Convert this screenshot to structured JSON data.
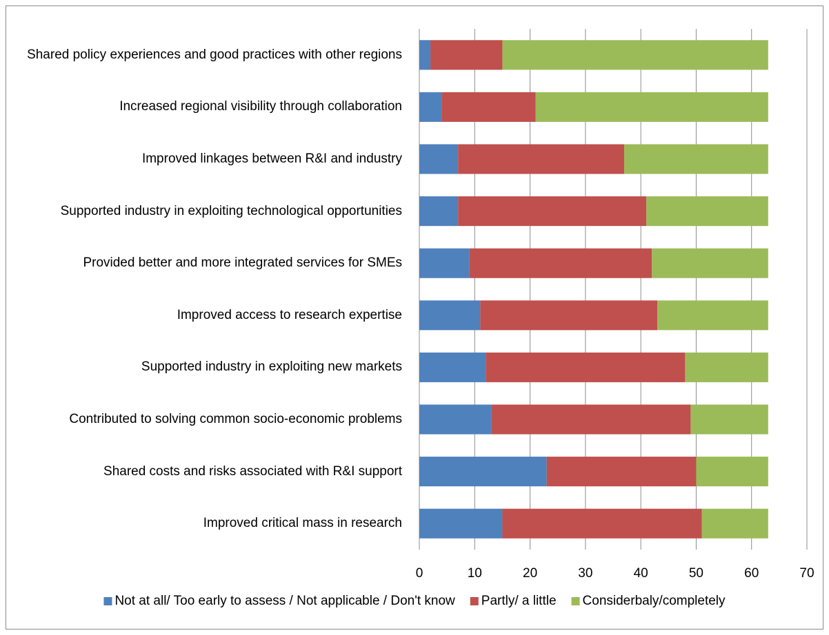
{
  "chart_data": {
    "type": "stacked_bar_horizontal",
    "categories": [
      "Shared policy experiences and good practices with other regions",
      "Increased regional visibility through collaboration",
      "Improved linkages between R&I and industry",
      "Supported industry in exploiting technological opportunities",
      "Provided better and more integrated services for SMEs",
      "Improved access to research expertise",
      "Supported industry in exploiting new markets",
      "Contributed to solving common socio-economic problems",
      "Shared costs  and risks associated with R&I support",
      "Improved critical mass in research"
    ],
    "series": [
      {
        "name": "Not at all/ Too early to assess / Not applicable /  Don't know",
        "color": "#4f81bd",
        "values": [
          2,
          4,
          7,
          7,
          9,
          11,
          12,
          13,
          23,
          15
        ]
      },
      {
        "name": "Partly/ a little",
        "color": "#c0504d",
        "values": [
          13,
          17,
          30,
          34,
          33,
          32,
          36,
          36,
          27,
          36
        ]
      },
      {
        "name": "Considerbaly/completely",
        "color": "#9bbb59",
        "values": [
          48,
          42,
          26,
          22,
          21,
          20,
          15,
          14,
          13,
          12
        ]
      }
    ],
    "xlim": [
      0,
      70
    ],
    "xticks": [
      0,
      10,
      20,
      30,
      40,
      50,
      60,
      70
    ],
    "grid": true,
    "legend": "bottom"
  }
}
